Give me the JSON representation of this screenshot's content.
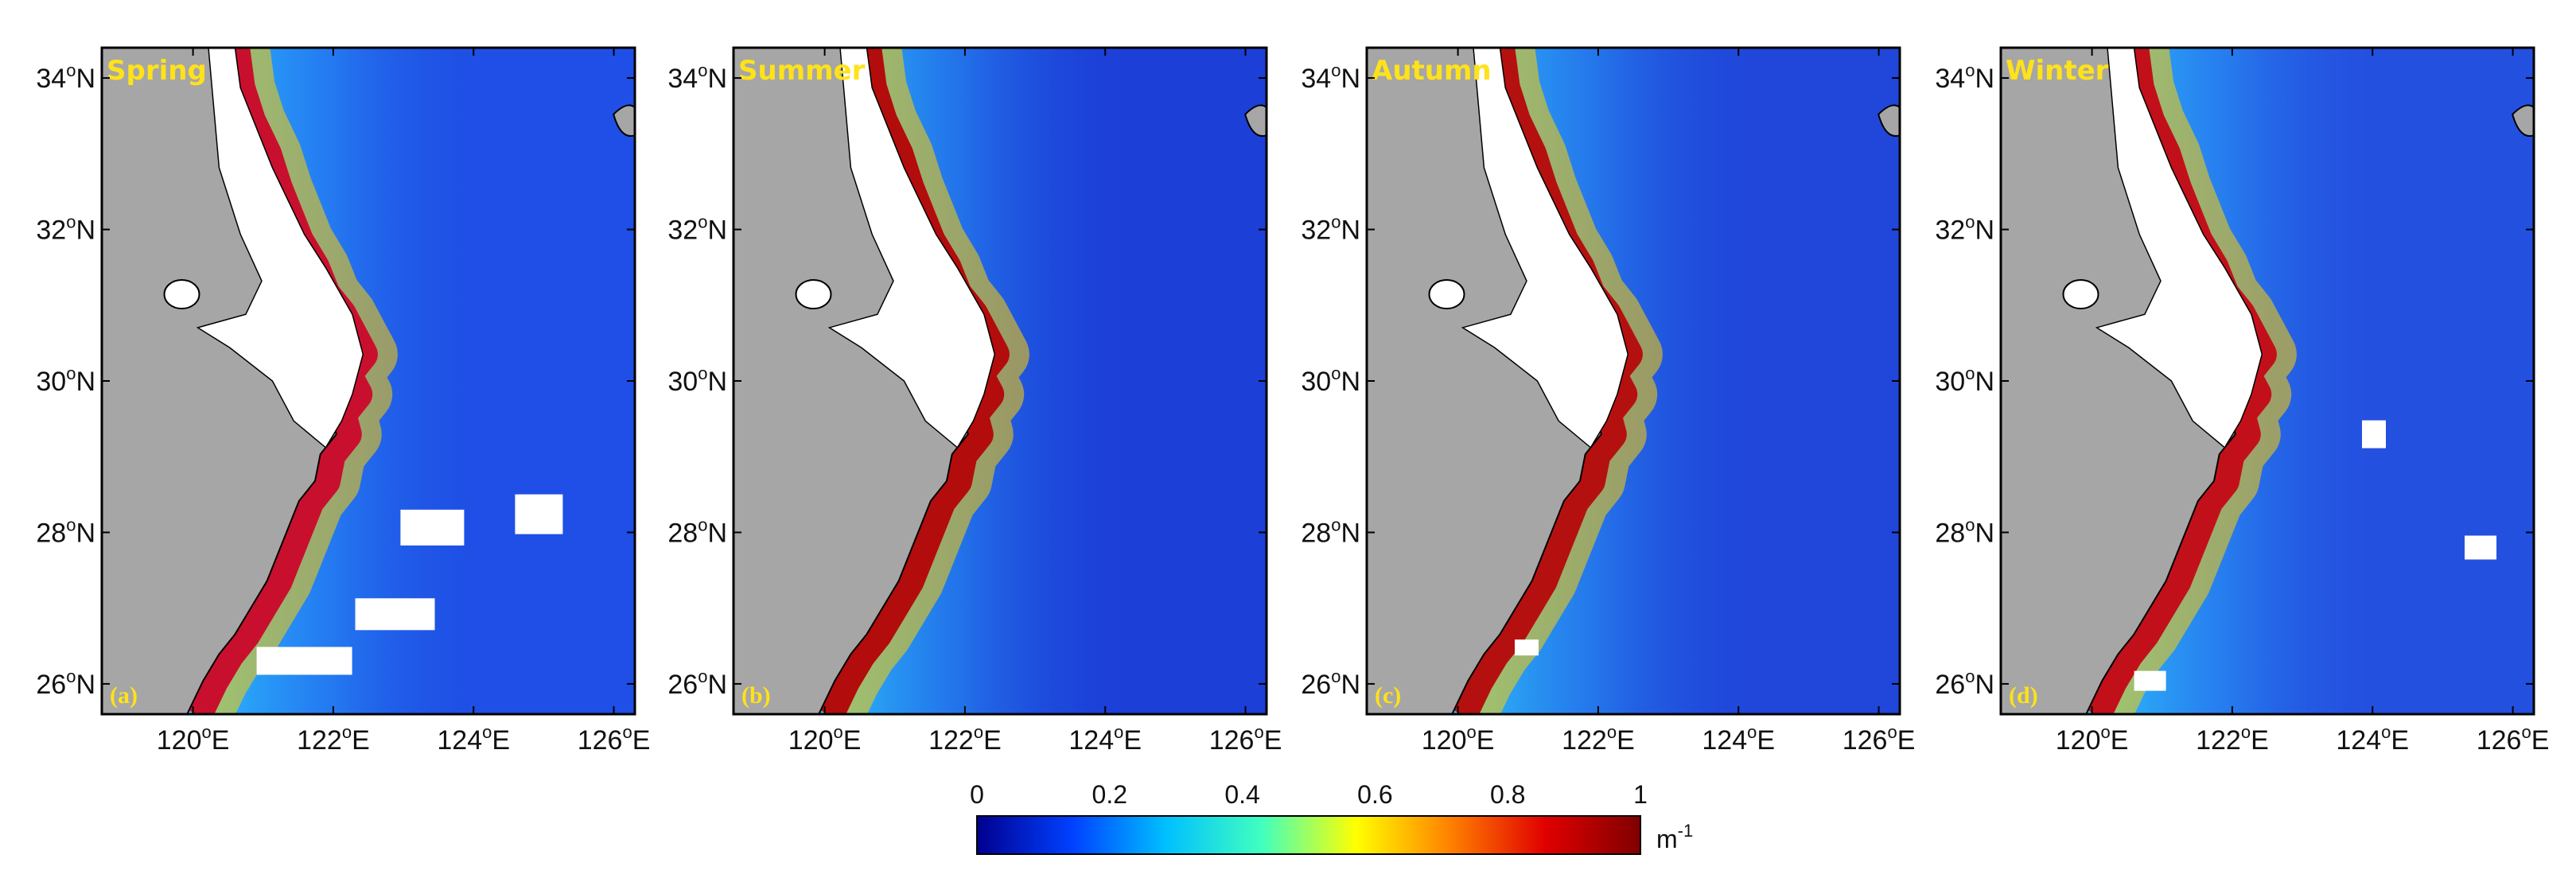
{
  "panels": [
    {
      "season": "Spring",
      "tag": "(a)",
      "ocean_color": "#1f4fe6",
      "coastal_band_color": "#c8102e"
    },
    {
      "season": "Summer",
      "tag": "(b)",
      "ocean_color": "#1c3fd8",
      "coastal_band_color": "#b30c0c"
    },
    {
      "season": "Autumn",
      "tag": "(c)",
      "ocean_color": "#2047da",
      "coastal_band_color": "#b51010"
    },
    {
      "season": "Winter",
      "tag": "(d)",
      "ocean_color": "#2450e0",
      "coastal_band_color": "#c2101a"
    }
  ],
  "lat_labels": [
    {
      "deg": "34",
      "hemi": "N",
      "value": 34
    },
    {
      "deg": "32",
      "hemi": "N",
      "value": 32
    },
    {
      "deg": "30",
      "hemi": "N",
      "value": 30
    },
    {
      "deg": "28",
      "hemi": "N",
      "value": 28
    },
    {
      "deg": "26",
      "hemi": "N",
      "value": 26
    }
  ],
  "lon_labels": [
    {
      "deg": "120",
      "hemi": "E",
      "value": 120
    },
    {
      "deg": "122",
      "hemi": "E",
      "value": 122
    },
    {
      "deg": "124",
      "hemi": "E",
      "value": 124
    },
    {
      "deg": "126",
      "hemi": "E",
      "value": 126
    }
  ],
  "extent": {
    "lon_min": 118.7,
    "lon_max": 126.3,
    "lat_min": 25.6,
    "lat_max": 34.4
  },
  "colorbar": {
    "ticks": [
      "0",
      "0.2",
      "0.4",
      "0.6",
      "0.8",
      "1"
    ],
    "unit_base": "m",
    "unit_sup": "-1",
    "colors": [
      "#00008f",
      "#0040ff",
      "#00c0ff",
      "#40ffbf",
      "#ffff00",
      "#ff8000",
      "#e00000",
      "#800000"
    ]
  },
  "colors": {
    "land": "#a6a6a6",
    "no_data": "#ffffff",
    "coastline": "#000000",
    "label": "#ffe21a"
  }
}
